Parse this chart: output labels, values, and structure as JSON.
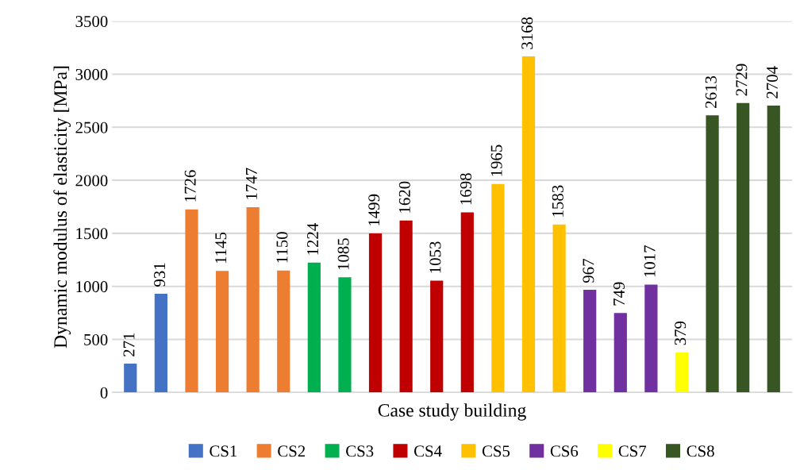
{
  "chart_data": {
    "type": "bar",
    "xlabel": "Case study building",
    "ylabel": "Dynamic modulus of elasticity [MPa]",
    "categories": [
      null,
      null,
      null,
      null,
      null,
      null,
      null,
      null,
      null,
      null,
      null,
      null,
      null,
      null,
      null,
      null,
      null,
      null,
      null,
      null,
      null,
      null
    ],
    "series": [
      {
        "name": "CS1",
        "color": "#4472c4",
        "values": [
          271,
          931,
          null,
          null,
          null,
          null,
          null,
          null,
          null,
          null,
          null,
          null,
          null,
          null,
          null,
          null,
          null,
          null,
          null,
          null,
          null,
          null
        ]
      },
      {
        "name": "CS2",
        "color": "#ed7d31",
        "values": [
          null,
          null,
          1726,
          1145,
          1747,
          1150,
          null,
          null,
          null,
          null,
          null,
          null,
          null,
          null,
          null,
          null,
          null,
          null,
          null,
          null,
          null,
          null
        ]
      },
      {
        "name": "CS3",
        "color": "#00b050",
        "values": [
          null,
          null,
          null,
          null,
          null,
          null,
          1224,
          1085,
          null,
          null,
          null,
          null,
          null,
          null,
          null,
          null,
          null,
          null,
          null,
          null,
          null,
          null
        ]
      },
      {
        "name": "CS4",
        "color": "#c00000",
        "values": [
          null,
          null,
          null,
          null,
          null,
          null,
          null,
          null,
          1499,
          1620,
          1053,
          1698,
          null,
          null,
          null,
          null,
          null,
          null,
          null,
          null,
          null,
          null
        ]
      },
      {
        "name": "CS5",
        "color": "#ffc000",
        "values": [
          null,
          null,
          null,
          null,
          null,
          null,
          null,
          null,
          null,
          null,
          null,
          null,
          1965,
          3168,
          1583,
          null,
          null,
          null,
          null,
          null,
          null,
          null
        ]
      },
      {
        "name": "CS6",
        "color": "#7030a0",
        "values": [
          null,
          null,
          null,
          null,
          null,
          null,
          null,
          null,
          null,
          null,
          null,
          null,
          null,
          null,
          null,
          967,
          749,
          1017,
          null,
          null,
          null,
          null
        ]
      },
      {
        "name": "CS7",
        "color": "#ffff00",
        "values": [
          null,
          null,
          null,
          null,
          null,
          null,
          null,
          null,
          null,
          null,
          null,
          null,
          null,
          null,
          null,
          null,
          null,
          null,
          379,
          null,
          null,
          null
        ]
      },
      {
        "name": "CS8",
        "color": "#375623",
        "values": [
          null,
          null,
          null,
          null,
          null,
          null,
          null,
          null,
          null,
          null,
          null,
          null,
          null,
          null,
          null,
          null,
          null,
          null,
          null,
          2613,
          2729,
          2704
        ]
      }
    ],
    "ylim": [
      0,
      3500
    ],
    "yticks": [
      0,
      500,
      1000,
      1500,
      2000,
      2500,
      3000,
      3500
    ],
    "grid": "y",
    "legend": "bottom",
    "data_labels": true,
    "tick_labels": "y"
  }
}
